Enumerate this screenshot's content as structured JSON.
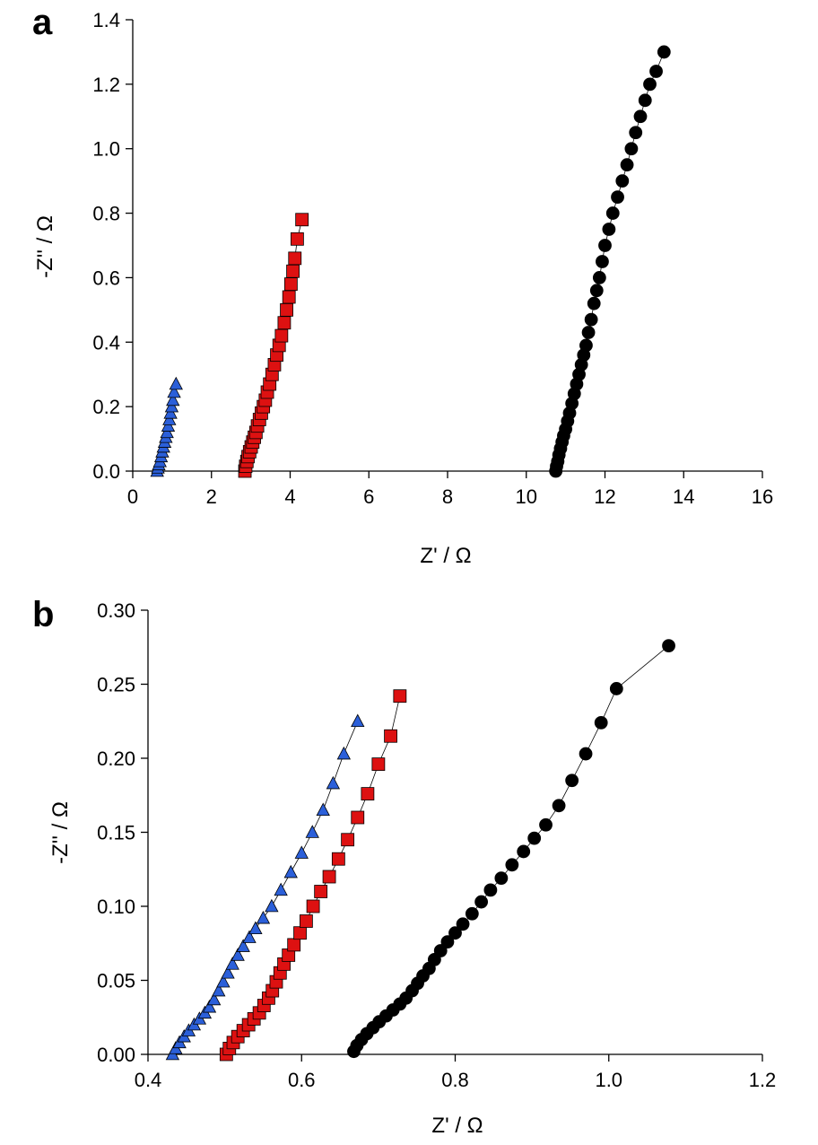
{
  "chart_data": [
    {
      "type": "scatter",
      "panel_label": "a",
      "xlabel": "Z' / Ω",
      "ylabel": "-Z'' / Ω",
      "xlim": [
        0,
        16
      ],
      "ylim": [
        0,
        1.4
      ],
      "x_ticks": [
        "0",
        "2",
        "4",
        "6",
        "8",
        "10",
        "12",
        "14",
        "16"
      ],
      "y_ticks": [
        "0.0",
        "0.2",
        "0.4",
        "0.6",
        "0.8",
        "1.0",
        "1.2",
        "1.4"
      ],
      "grid": false,
      "series": [
        {
          "marker": "triangle",
          "color": "#2b5fd9",
          "points": [
            [
              0.62,
              0.0
            ],
            [
              0.64,
              0.01
            ],
            [
              0.66,
              0.02
            ],
            [
              0.69,
              0.03
            ],
            [
              0.72,
              0.045
            ],
            [
              0.75,
              0.06
            ],
            [
              0.78,
              0.075
            ],
            [
              0.81,
              0.09
            ],
            [
              0.84,
              0.105
            ],
            [
              0.87,
              0.12
            ],
            [
              0.9,
              0.14
            ],
            [
              0.93,
              0.16
            ],
            [
              0.96,
              0.18
            ],
            [
              0.99,
              0.2
            ],
            [
              1.02,
              0.22
            ],
            [
              1.05,
              0.245
            ],
            [
              1.1,
              0.27
            ]
          ]
        },
        {
          "marker": "square",
          "color": "#dd1111",
          "points": [
            [
              2.85,
              0.0
            ],
            [
              2.87,
              0.015
            ],
            [
              2.9,
              0.03
            ],
            [
              2.93,
              0.045
            ],
            [
              2.97,
              0.06
            ],
            [
              3.01,
              0.075
            ],
            [
              3.05,
              0.09
            ],
            [
              3.09,
              0.105
            ],
            [
              3.13,
              0.12
            ],
            [
              3.17,
              0.14
            ],
            [
              3.22,
              0.16
            ],
            [
              3.27,
              0.18
            ],
            [
              3.32,
              0.2
            ],
            [
              3.37,
              0.22
            ],
            [
              3.42,
              0.245
            ],
            [
              3.48,
              0.27
            ],
            [
              3.54,
              0.3
            ],
            [
              3.6,
              0.33
            ],
            [
              3.66,
              0.36
            ],
            [
              3.72,
              0.39
            ],
            [
              3.78,
              0.42
            ],
            [
              3.85,
              0.46
            ],
            [
              3.91,
              0.5
            ],
            [
              3.97,
              0.54
            ],
            [
              4.02,
              0.58
            ],
            [
              4.07,
              0.62
            ],
            [
              4.12,
              0.66
            ],
            [
              4.18,
              0.72
            ],
            [
              4.3,
              0.78
            ]
          ]
        },
        {
          "marker": "circle",
          "color": "#000000",
          "points": [
            [
              10.75,
              0.0
            ],
            [
              10.77,
              0.015
            ],
            [
              10.8,
              0.03
            ],
            [
              10.83,
              0.05
            ],
            [
              10.87,
              0.07
            ],
            [
              10.91,
              0.09
            ],
            [
              10.95,
              0.11
            ],
            [
              11.0,
              0.13
            ],
            [
              11.05,
              0.155
            ],
            [
              11.1,
              0.18
            ],
            [
              11.16,
              0.21
            ],
            [
              11.22,
              0.24
            ],
            [
              11.28,
              0.27
            ],
            [
              11.34,
              0.3
            ],
            [
              11.4,
              0.33
            ],
            [
              11.46,
              0.36
            ],
            [
              11.52,
              0.39
            ],
            [
              11.58,
              0.43
            ],
            [
              11.65,
              0.47
            ],
            [
              11.72,
              0.52
            ],
            [
              11.79,
              0.56
            ],
            [
              11.86,
              0.6
            ],
            [
              11.93,
              0.65
            ],
            [
              12.0,
              0.7
            ],
            [
              12.1,
              0.75
            ],
            [
              12.2,
              0.8
            ],
            [
              12.32,
              0.85
            ],
            [
              12.44,
              0.9
            ],
            [
              12.56,
              0.95
            ],
            [
              12.67,
              1.0
            ],
            [
              12.78,
              1.05
            ],
            [
              12.9,
              1.1
            ],
            [
              13.02,
              1.15
            ],
            [
              13.14,
              1.2
            ],
            [
              13.3,
              1.24
            ],
            [
              13.5,
              1.3
            ]
          ]
        }
      ]
    },
    {
      "type": "scatter",
      "panel_label": "b",
      "xlabel": "Z' / Ω",
      "ylabel": "-Z'' / Ω",
      "xlim": [
        0.4,
        1.2
      ],
      "ylim": [
        0,
        0.3
      ],
      "x_ticks": [
        "0.4",
        "0.6",
        "0.8",
        "1.0",
        "1.2"
      ],
      "y_ticks": [
        "0.00",
        "0.05",
        "0.10",
        "0.15",
        "0.20",
        "0.25",
        "0.30"
      ],
      "grid": false,
      "series": [
        {
          "marker": "triangle",
          "color": "#2b5fd9",
          "points": [
            [
              0.432,
              0.0
            ],
            [
              0.436,
              0.004
            ],
            [
              0.441,
              0.008
            ],
            [
              0.447,
              0.012
            ],
            [
              0.453,
              0.016
            ],
            [
              0.46,
              0.02
            ],
            [
              0.467,
              0.024
            ],
            [
              0.474,
              0.028
            ],
            [
              0.48,
              0.032
            ],
            [
              0.486,
              0.037
            ],
            [
              0.492,
              0.043
            ],
            [
              0.498,
              0.049
            ],
            [
              0.504,
              0.055
            ],
            [
              0.51,
              0.061
            ],
            [
              0.517,
              0.067
            ],
            [
              0.524,
              0.073
            ],
            [
              0.532,
              0.079
            ],
            [
              0.54,
              0.085
            ],
            [
              0.55,
              0.092
            ],
            [
              0.561,
              0.1
            ],
            [
              0.573,
              0.111
            ],
            [
              0.586,
              0.123
            ],
            [
              0.6,
              0.136
            ],
            [
              0.614,
              0.15
            ],
            [
              0.628,
              0.165
            ],
            [
              0.641,
              0.183
            ],
            [
              0.655,
              0.203
            ],
            [
              0.673,
              0.225
            ]
          ]
        },
        {
          "marker": "square",
          "color": "#dd1111",
          "points": [
            [
              0.502,
              0.0
            ],
            [
              0.506,
              0.004
            ],
            [
              0.511,
              0.008
            ],
            [
              0.517,
              0.012
            ],
            [
              0.524,
              0.016
            ],
            [
              0.531,
              0.02
            ],
            [
              0.538,
              0.024
            ],
            [
              0.545,
              0.028
            ],
            [
              0.551,
              0.033
            ],
            [
              0.557,
              0.038
            ],
            [
              0.562,
              0.043
            ],
            [
              0.567,
              0.049
            ],
            [
              0.572,
              0.055
            ],
            [
              0.577,
              0.061
            ],
            [
              0.583,
              0.067
            ],
            [
              0.59,
              0.074
            ],
            [
              0.598,
              0.082
            ],
            [
              0.606,
              0.09
            ],
            [
              0.615,
              0.1
            ],
            [
              0.625,
              0.11
            ],
            [
              0.636,
              0.12
            ],
            [
              0.648,
              0.132
            ],
            [
              0.66,
              0.145
            ],
            [
              0.673,
              0.16
            ],
            [
              0.686,
              0.176
            ],
            [
              0.7,
              0.196
            ],
            [
              0.716,
              0.215
            ],
            [
              0.728,
              0.242
            ]
          ]
        },
        {
          "marker": "circle",
          "color": "#000000",
          "points": [
            [
              0.668,
              0.002
            ],
            [
              0.672,
              0.006
            ],
            [
              0.678,
              0.01
            ],
            [
              0.685,
              0.014
            ],
            [
              0.693,
              0.018
            ],
            [
              0.701,
              0.022
            ],
            [
              0.71,
              0.026
            ],
            [
              0.719,
              0.03
            ],
            [
              0.728,
              0.034
            ],
            [
              0.736,
              0.038
            ],
            [
              0.744,
              0.043
            ],
            [
              0.751,
              0.048
            ],
            [
              0.758,
              0.053
            ],
            [
              0.766,
              0.058
            ],
            [
              0.773,
              0.064
            ],
            [
              0.781,
              0.07
            ],
            [
              0.79,
              0.076
            ],
            [
              0.8,
              0.082
            ],
            [
              0.81,
              0.088
            ],
            [
              0.822,
              0.095
            ],
            [
              0.834,
              0.103
            ],
            [
              0.846,
              0.111
            ],
            [
              0.86,
              0.119
            ],
            [
              0.874,
              0.128
            ],
            [
              0.889,
              0.137
            ],
            [
              0.903,
              0.146
            ],
            [
              0.918,
              0.155
            ],
            [
              0.935,
              0.168
            ],
            [
              0.952,
              0.185
            ],
            [
              0.97,
              0.203
            ],
            [
              0.99,
              0.224
            ],
            [
              1.01,
              0.247
            ],
            [
              1.078,
              0.276
            ]
          ]
        }
      ]
    }
  ]
}
